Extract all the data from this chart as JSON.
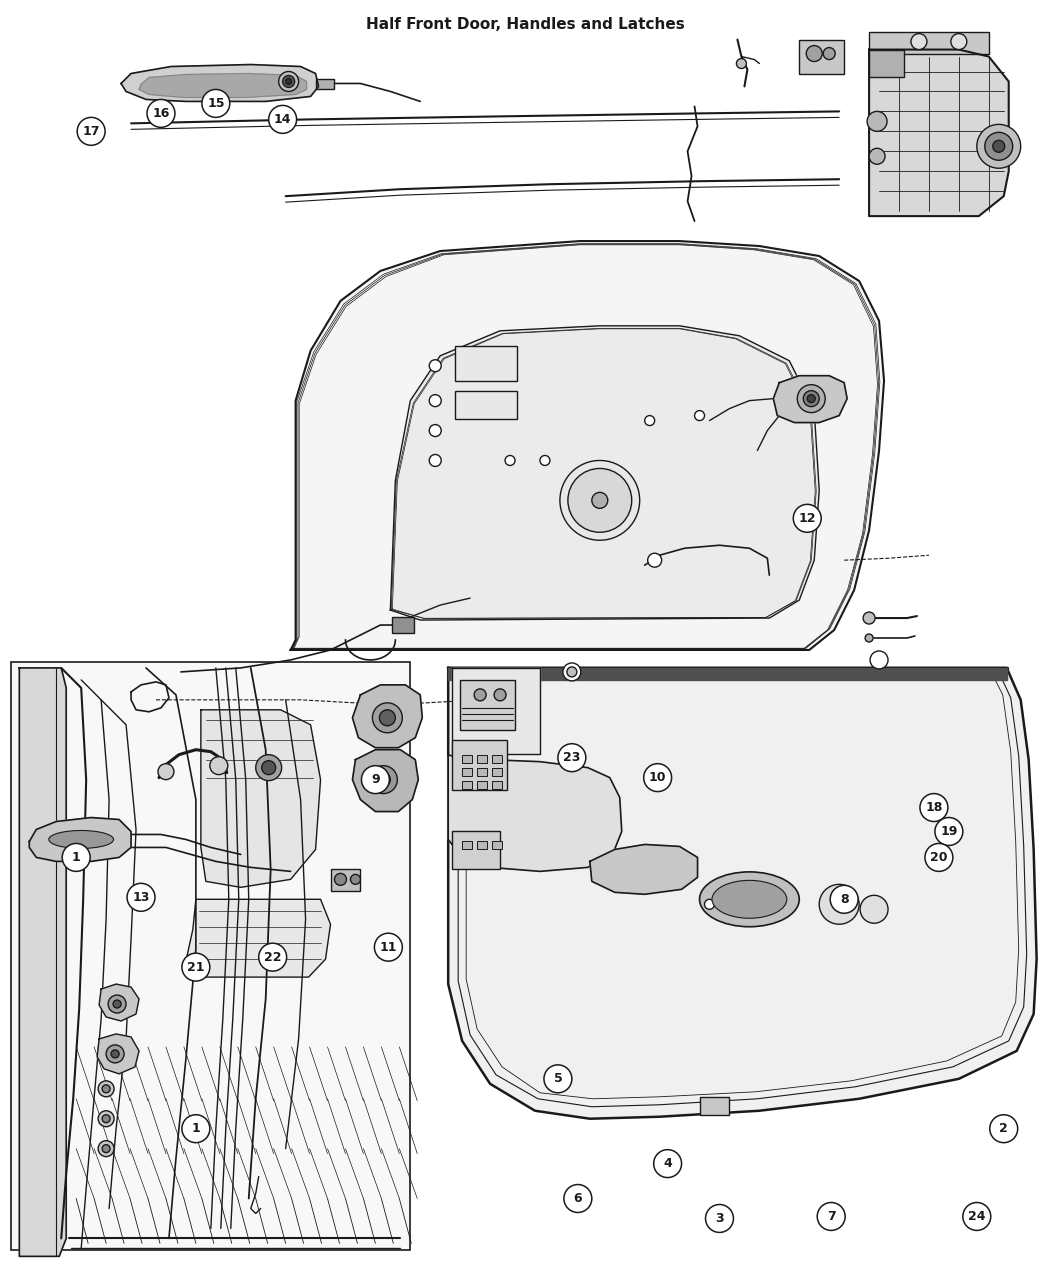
{
  "title": "Half Front Door, Handles and Latches",
  "bg_color": "#ffffff",
  "line_color": "#1a1a1a",
  "label_color": "#1a1a1a",
  "figsize": [
    10.5,
    12.75
  ],
  "dpi": 100,
  "labels": [
    [
      "1",
      195,
      1130
    ],
    [
      "2",
      1005,
      1130
    ],
    [
      "3",
      720,
      1220
    ],
    [
      "4",
      668,
      1165
    ],
    [
      "5",
      558,
      1080
    ],
    [
      "6",
      578,
      1200
    ],
    [
      "7",
      832,
      1218
    ],
    [
      "8",
      845,
      900
    ],
    [
      "9",
      375,
      780
    ],
    [
      "10",
      658,
      778
    ],
    [
      "11",
      388,
      948
    ],
    [
      "12",
      808,
      518
    ],
    [
      "13",
      140,
      898
    ],
    [
      "14",
      282,
      118
    ],
    [
      "15",
      215,
      102
    ],
    [
      "16",
      160,
      112
    ],
    [
      "17",
      90,
      130
    ],
    [
      "18",
      935,
      808
    ],
    [
      "19",
      950,
      832
    ],
    [
      "20",
      940,
      858
    ],
    [
      "21",
      195,
      968
    ],
    [
      "22",
      272,
      958
    ],
    [
      "23",
      572,
      758
    ],
    [
      "24",
      978,
      1218
    ],
    [
      "1",
      75,
      858
    ]
  ]
}
